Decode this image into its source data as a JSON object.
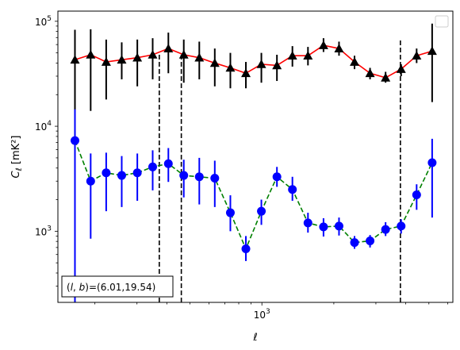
{
  "chart_data": {
    "type": "scatter",
    "xscale": "log",
    "yscale": "log",
    "xlim": [
      140,
      6300
    ],
    "ylim": [
      210,
      125000
    ],
    "xlabel": "ℓ",
    "ylabel": "C_ℓ  [mK²]",
    "x_ticks": [
      {
        "value": 1000,
        "base": "10",
        "exp": "3"
      }
    ],
    "y_ticks": [
      {
        "value": 1000,
        "base": "10",
        "exp": "3"
      },
      {
        "value": 10000,
        "base": "10",
        "exp": "4"
      },
      {
        "value": 100000,
        "base": "10",
        "exp": "5"
      }
    ],
    "annotation": "(l, b)=(6.01,19.54)",
    "annotation_parts": {
      "l": "l",
      "b": "b",
      "values": "=(6.01,19.54)"
    },
    "legend": {
      "placement": "upper-right",
      "entries": []
    },
    "vlines": [
      372,
      460,
      3800
    ],
    "vline_ymax": [
      50000,
      50000,
      67000
    ],
    "series": [
      {
        "color": "#000000",
        "marker": "triangle",
        "line_color": "#ff0000",
        "line_style": "solid",
        "x": [
          165,
          192,
          223,
          259,
          301,
          349,
          406,
          471,
          547,
          635,
          738,
          857,
          995,
          1156,
          1342,
          1559,
          1811,
          2103,
          2442,
          2836,
          3294,
          3826,
          4443,
          5160
        ],
        "y": [
          43000,
          48000,
          41000,
          43000,
          45000,
          48000,
          55000,
          48000,
          45000,
          40000,
          36000,
          32000,
          39000,
          38000,
          47000,
          47000,
          59000,
          55000,
          41000,
          32000,
          29000,
          35000,
          47000,
          52000
        ],
        "y_low": [
          1000,
          14000,
          18000,
          28000,
          24000,
          28000,
          32000,
          26000,
          28000,
          24000,
          23000,
          23000,
          26000,
          27000,
          37000,
          38000,
          51000,
          47000,
          35000,
          28000,
          26000,
          30000,
          40000,
          17000
        ],
        "y_high": [
          83000,
          84000,
          67000,
          63000,
          67000,
          69000,
          78000,
          67000,
          64000,
          55000,
          50000,
          41000,
          50000,
          48000,
          58000,
          57000,
          69000,
          64000,
          47000,
          36000,
          33000,
          39000,
          55000,
          95000
        ]
      },
      {
        "color": "#0000ff",
        "marker": "circle",
        "line_color": "#008000",
        "line_style": "dashed",
        "x": [
          165,
          192,
          223,
          259,
          301,
          349,
          406,
          471,
          547,
          635,
          738,
          857,
          995,
          1156,
          1342,
          1559,
          1811,
          2103,
          2442,
          2836,
          3294,
          3826,
          4443,
          5160
        ],
        "y": [
          7300,
          3000,
          3600,
          3400,
          3600,
          4100,
          4400,
          3400,
          3300,
          3200,
          1500,
          680,
          1550,
          3300,
          2500,
          1200,
          1100,
          1120,
          780,
          810,
          1040,
          1120,
          2220,
          4500
        ],
        "y_low": [
          200,
          850,
          1550,
          1700,
          1950,
          2450,
          2950,
          2100,
          1800,
          1700,
          1000,
          520,
          1150,
          2650,
          1950,
          970,
          890,
          910,
          680,
          700,
          900,
          950,
          1600,
          1350
        ],
        "y_high": [
          14500,
          5500,
          5600,
          5200,
          5500,
          5900,
          6200,
          4800,
          5000,
          4700,
          2200,
          900,
          2000,
          4100,
          3300,
          1500,
          1330,
          1350,
          900,
          920,
          1220,
          1300,
          2800,
          7600
        ]
      }
    ]
  }
}
